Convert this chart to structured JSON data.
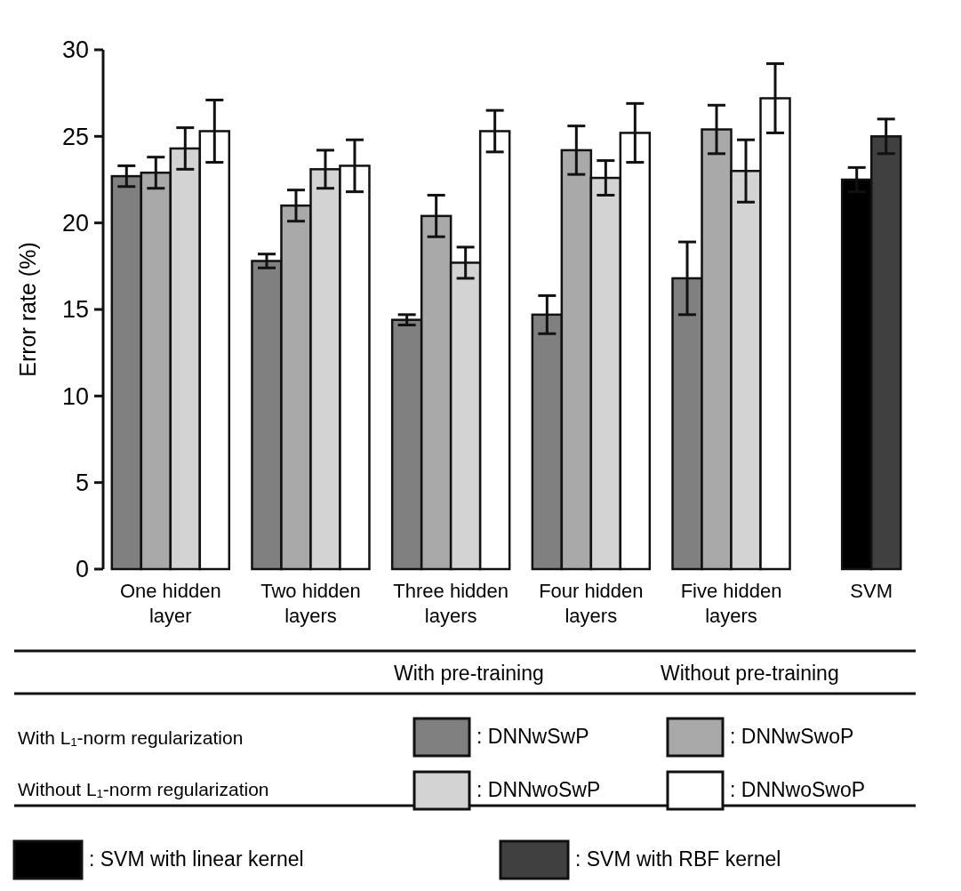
{
  "chart_data": {
    "type": "bar",
    "ylabel": "Error rate (%)",
    "categories": [
      "One hidden\nlayer",
      "Two hidden\nlayers",
      "Three hidden\nlayers",
      "Four hidden\nlayers",
      "Five hidden\nlayers",
      "SVM"
    ],
    "series": [
      {
        "name": ": DNNwSwP",
        "color": "#808080",
        "values": [
          22.7,
          17.8,
          14.4,
          14.7,
          16.8,
          null
        ],
        "errors": [
          0.6,
          0.4,
          0.3,
          1.1,
          2.1,
          null
        ]
      },
      {
        "name": ": DNNwSwoP",
        "color": "#a9a9a9",
        "values": [
          22.9,
          21.0,
          20.4,
          24.2,
          25.4,
          null
        ],
        "errors": [
          0.9,
          0.9,
          1.2,
          1.4,
          1.4,
          null
        ]
      },
      {
        "name": ": DNNwoSwP",
        "color": "#d3d3d3",
        "values": [
          24.3,
          23.1,
          17.7,
          22.6,
          23.0,
          null
        ],
        "errors": [
          1.2,
          1.1,
          0.9,
          1.0,
          1.8,
          null
        ]
      },
      {
        "name": ": DNNwoSwoP",
        "color": "#ffffff",
        "values": [
          25.3,
          23.3,
          25.3,
          25.2,
          27.2,
          null
        ],
        "errors": [
          1.8,
          1.5,
          1.2,
          1.7,
          2.0,
          null
        ]
      },
      {
        "name": ": SVM with linear kernel",
        "color": "#000000",
        "values": [
          null,
          null,
          null,
          null,
          null,
          22.5
        ],
        "errors": [
          null,
          null,
          null,
          null,
          null,
          0.7
        ]
      },
      {
        "name": ": SVM with RBF kernel",
        "color": "#404040",
        "values": [
          null,
          null,
          null,
          null,
          null,
          25.0
        ],
        "errors": [
          null,
          null,
          null,
          null,
          null,
          1.0
        ]
      }
    ],
    "annotations": [
      "With pre-training",
      "Without pre-training",
      "With L₁-norm regularization",
      "Without L₁-norm regularization"
    ],
    "ylim": [
      0,
      30
    ],
    "yticks": [
      0,
      5,
      10,
      15,
      20,
      25,
      30
    ],
    "legend": "bottom",
    "grid": false
  }
}
